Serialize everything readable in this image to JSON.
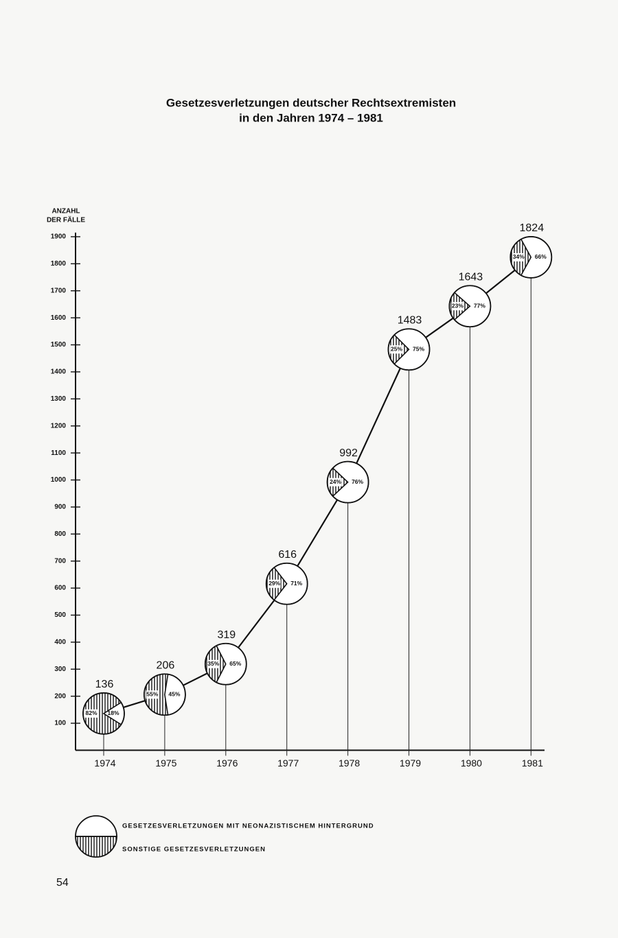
{
  "chart_data": {
    "type": "line",
    "title": "Gesetzesverletzungen deutscher Rechtsextremisten",
    "subtitle": "in den Jahren 1974 – 1981",
    "ylabel": [
      "ANZAHL",
      "DER FÄLLE"
    ],
    "categories": [
      "1974",
      "1975",
      "1976",
      "1977",
      "1978",
      "1979",
      "1980",
      "1981"
    ],
    "values": [
      136,
      206,
      319,
      616,
      992,
      1483,
      1643,
      1824
    ],
    "color": "#111111",
    "ylim": [
      0,
      1900
    ],
    "yticks": [
      100,
      200,
      300,
      400,
      500,
      600,
      700,
      800,
      900,
      1000,
      1100,
      1200,
      1300,
      1400,
      1500,
      1600,
      1700,
      1800,
      1900
    ],
    "series": [
      {
        "name": "GESETZESVERLETZUNGEN MIT NEONAZISTISCHEM HINTERGRUND",
        "color": "#ffffff",
        "hatched": false,
        "values": [
          18,
          45,
          65,
          71,
          76,
          75,
          77,
          66
        ],
        "value_labels": [
          "18%",
          "45%",
          "65%",
          "71%",
          "76%",
          "75%",
          "77%",
          "66%"
        ]
      },
      {
        "name": "SONSTIGE GESETZESVERLETZUNGEN",
        "color": "#111111",
        "hatched": true,
        "values": [
          82,
          55,
          35,
          29,
          24,
          25,
          23,
          34
        ],
        "value_labels": [
          "82%",
          "55%",
          "35%",
          "29%",
          "24%",
          "25%",
          "23%",
          "34%"
        ]
      }
    ]
  },
  "page_number": "54"
}
